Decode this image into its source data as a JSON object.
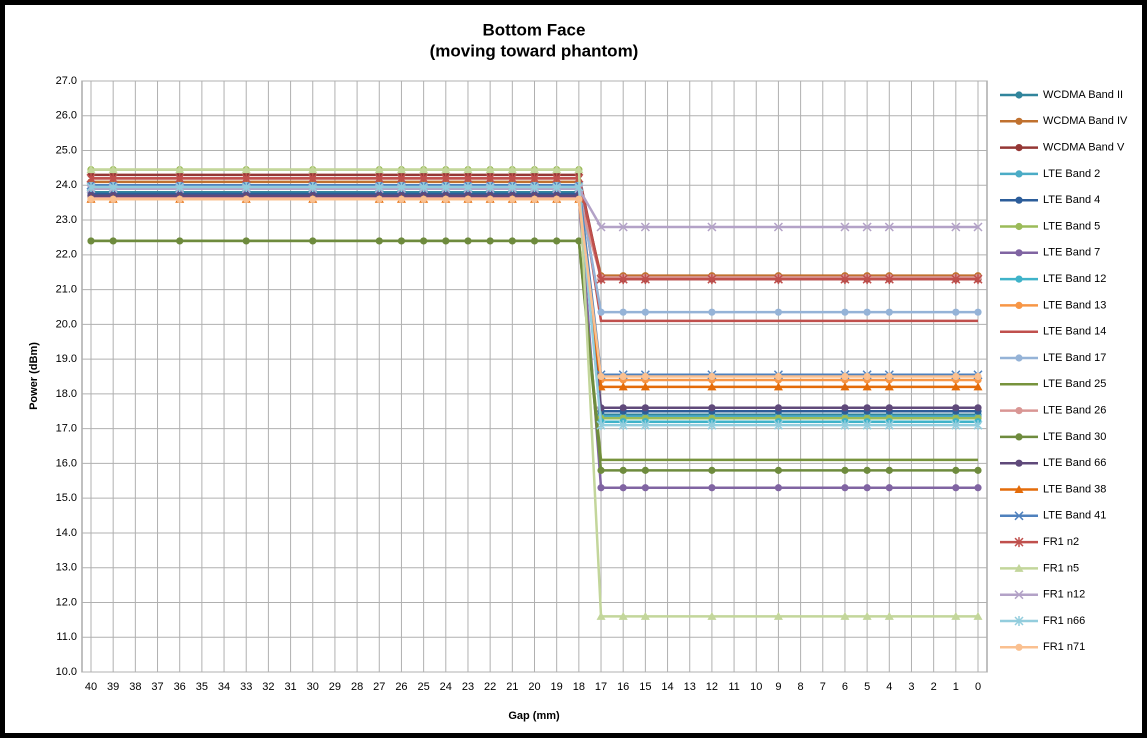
{
  "chart_data": {
    "type": "line",
    "title": "Bottom Face",
    "subtitle": "(moving toward phantom)",
    "x_label": "Gap (mm)",
    "y_label": "Power (dBm)",
    "x": [
      40,
      39,
      36,
      33,
      30,
      27,
      26,
      25,
      24,
      23,
      22,
      21,
      20,
      19,
      18,
      17,
      16,
      15,
      12,
      9,
      6,
      5,
      4,
      1,
      0
    ],
    "xlim": [
      40,
      0
    ],
    "xticks": [
      40,
      39,
      38,
      37,
      36,
      35,
      34,
      33,
      32,
      31,
      30,
      29,
      28,
      27,
      26,
      25,
      24,
      23,
      22,
      21,
      20,
      19,
      18,
      17,
      16,
      15,
      14,
      13,
      12,
      11,
      10,
      9,
      8,
      7,
      6,
      5,
      4,
      3,
      2,
      1,
      0
    ],
    "ylim": [
      10,
      27
    ],
    "yticks": [
      {
        "value": 10,
        "label": "10.0"
      },
      {
        "value": 11,
        "label": "11.0"
      },
      {
        "value": 12,
        "label": "12.0"
      },
      {
        "value": 13,
        "label": "13.0"
      },
      {
        "value": 14,
        "label": "14.0"
      },
      {
        "value": 15,
        "label": "15.0"
      },
      {
        "value": 16,
        "label": "16.0"
      },
      {
        "value": 17,
        "label": "17.0"
      },
      {
        "value": 18,
        "label": "18.0"
      },
      {
        "value": 19,
        "label": "19.0"
      },
      {
        "value": 20,
        "label": "20.0"
      },
      {
        "value": 21,
        "label": "21.0"
      },
      {
        "value": 22,
        "label": "22.0"
      },
      {
        "value": 23,
        "label": "23.0"
      },
      {
        "value": 24,
        "label": "24.0"
      },
      {
        "value": 25,
        "label": "25.0"
      },
      {
        "value": 26,
        "label": "26.0"
      },
      {
        "value": 27,
        "label": "27.0"
      }
    ],
    "grid": true,
    "legend": "right",
    "series": [
      {
        "name": "WCDMA Band II",
        "color": "#31859c",
        "marker": "circle",
        "values": [
          23.8,
          23.8,
          23.8,
          23.8,
          23.8,
          23.8,
          23.8,
          23.8,
          23.8,
          23.8,
          23.8,
          23.8,
          23.8,
          23.8,
          23.8,
          17.4,
          17.4,
          17.4,
          17.4,
          17.4,
          17.4,
          17.4,
          17.4,
          17.4,
          17.4
        ]
      },
      {
        "name": "WCDMA Band IV",
        "color": "#c0712f",
        "marker": "circle",
        "values": [
          24.1,
          24.1,
          24.1,
          24.1,
          24.1,
          24.1,
          24.1,
          24.1,
          24.1,
          24.1,
          24.1,
          24.1,
          24.1,
          24.1,
          24.1,
          21.4,
          21.4,
          21.4,
          21.4,
          21.4,
          21.4,
          21.4,
          21.4,
          21.4,
          21.4
        ]
      },
      {
        "name": "WCDMA Band V",
        "color": "#953735",
        "marker": "circle",
        "values": [
          24.3,
          24.3,
          24.3,
          24.3,
          24.3,
          24.3,
          24.3,
          24.3,
          24.3,
          24.3,
          24.3,
          24.3,
          24.3,
          24.3,
          24.3,
          21.3,
          21.3,
          21.3,
          21.3,
          21.3,
          21.3,
          21.3,
          21.3,
          21.3,
          21.3
        ]
      },
      {
        "name": "LTE Band 2",
        "color": "#4bacc6",
        "marker": "circle",
        "values": [
          23.9,
          23.9,
          23.9,
          23.9,
          23.9,
          23.9,
          23.9,
          23.9,
          23.9,
          23.9,
          23.9,
          23.9,
          23.9,
          23.9,
          23.9,
          17.35,
          17.35,
          17.35,
          17.35,
          17.35,
          17.35,
          17.35,
          17.35,
          17.35,
          17.35
        ]
      },
      {
        "name": "LTE Band 4",
        "color": "#2c5d9a",
        "marker": "circle",
        "values": [
          23.75,
          23.75,
          23.75,
          23.75,
          23.75,
          23.75,
          23.75,
          23.75,
          23.75,
          23.75,
          23.75,
          23.75,
          23.75,
          23.75,
          23.75,
          17.5,
          17.5,
          17.5,
          17.5,
          17.5,
          17.5,
          17.5,
          17.5,
          17.5,
          17.5
        ]
      },
      {
        "name": "LTE Band 5",
        "color": "#9bbb59",
        "marker": "circle",
        "values": [
          24.45,
          24.45,
          24.45,
          24.45,
          24.45,
          24.45,
          24.45,
          24.45,
          24.45,
          24.45,
          24.45,
          24.45,
          24.45,
          24.45,
          24.45,
          17.3,
          17.3,
          17.3,
          17.3,
          17.3,
          17.3,
          17.3,
          17.3,
          17.3,
          17.3
        ]
      },
      {
        "name": "LTE Band 7",
        "color": "#8064a2",
        "marker": "circle",
        "values": [
          23.7,
          23.7,
          23.7,
          23.7,
          23.7,
          23.7,
          23.7,
          23.7,
          23.7,
          23.7,
          23.7,
          23.7,
          23.7,
          23.7,
          23.7,
          15.3,
          15.3,
          15.3,
          15.3,
          15.3,
          15.3,
          15.3,
          15.3,
          15.3,
          15.3
        ]
      },
      {
        "name": "LTE Band 12",
        "color": "#3fb3c9",
        "marker": "circle",
        "values": [
          24.0,
          24.0,
          24.0,
          24.0,
          24.0,
          24.0,
          24.0,
          24.0,
          24.0,
          24.0,
          24.0,
          24.0,
          24.0,
          24.0,
          24.0,
          17.2,
          17.2,
          17.2,
          17.2,
          17.2,
          17.2,
          17.2,
          17.2,
          17.2,
          17.2
        ]
      },
      {
        "name": "LTE Band 13",
        "color": "#f79646",
        "marker": "circle",
        "values": [
          23.6,
          23.6,
          23.6,
          23.6,
          23.6,
          23.6,
          23.6,
          23.6,
          23.6,
          23.6,
          23.6,
          23.6,
          23.6,
          23.6,
          23.6,
          18.4,
          18.4,
          18.4,
          18.4,
          18.4,
          18.4,
          18.4,
          18.4,
          18.4,
          18.4
        ]
      },
      {
        "name": "LTE Band 14",
        "color": "#c0504d",
        "marker": "none",
        "values": [
          24.2,
          24.2,
          24.2,
          24.2,
          24.2,
          24.2,
          24.2,
          24.2,
          24.2,
          24.2,
          24.2,
          24.2,
          24.2,
          24.2,
          24.2,
          20.1,
          20.1,
          20.1,
          20.1,
          20.1,
          20.1,
          20.1,
          20.1,
          20.1,
          20.1
        ]
      },
      {
        "name": "LTE Band 17",
        "color": "#95b3d7",
        "marker": "circle",
        "values": [
          24.0,
          24.0,
          24.0,
          24.0,
          24.0,
          24.0,
          24.0,
          24.0,
          24.0,
          24.0,
          24.0,
          24.0,
          24.0,
          24.0,
          24.0,
          20.35,
          20.35,
          20.35,
          20.35,
          20.35,
          20.35,
          20.35,
          20.35,
          20.35,
          20.35
        ]
      },
      {
        "name": "LTE Band 25",
        "color": "#77933c",
        "marker": "none",
        "values": [
          22.4,
          22.4,
          22.4,
          22.4,
          22.4,
          22.4,
          22.4,
          22.4,
          22.4,
          22.4,
          22.4,
          22.4,
          22.4,
          22.4,
          22.4,
          16.1,
          16.1,
          16.1,
          16.1,
          16.1,
          16.1,
          16.1,
          16.1,
          16.1,
          16.1
        ]
      },
      {
        "name": "LTE Band 26",
        "color": "#d99694",
        "marker": "circle",
        "values": [
          23.65,
          23.65,
          23.65,
          23.65,
          23.65,
          23.65,
          23.65,
          23.65,
          23.65,
          23.65,
          23.65,
          23.65,
          23.65,
          23.65,
          23.65,
          21.35,
          21.35,
          21.35,
          21.35,
          21.35,
          21.35,
          21.35,
          21.35,
          21.35,
          21.35
        ]
      },
      {
        "name": "LTE Band 30",
        "color": "#6e8b3d",
        "marker": "circle",
        "values": [
          22.4,
          22.4,
          22.4,
          22.4,
          22.4,
          22.4,
          22.4,
          22.4,
          22.4,
          22.4,
          22.4,
          22.4,
          22.4,
          22.4,
          22.4,
          15.8,
          15.8,
          15.8,
          15.8,
          15.8,
          15.8,
          15.8,
          15.8,
          15.8,
          15.8
        ]
      },
      {
        "name": "LTE Band 66",
        "color": "#5f497a",
        "marker": "circle",
        "values": [
          23.7,
          23.7,
          23.7,
          23.7,
          23.7,
          23.7,
          23.7,
          23.7,
          23.7,
          23.7,
          23.7,
          23.7,
          23.7,
          23.7,
          23.7,
          17.6,
          17.6,
          17.6,
          17.6,
          17.6,
          17.6,
          17.6,
          17.6,
          17.6,
          17.6
        ]
      },
      {
        "name": "LTE Band 38",
        "color": "#e46c0a",
        "marker": "triangle",
        "values": [
          23.6,
          23.6,
          23.6,
          23.6,
          23.6,
          23.6,
          23.6,
          23.6,
          23.6,
          23.6,
          23.6,
          23.6,
          23.6,
          23.6,
          23.6,
          18.2,
          18.2,
          18.2,
          18.2,
          18.2,
          18.2,
          18.2,
          18.2,
          18.2,
          18.2
        ]
      },
      {
        "name": "LTE Band 41",
        "color": "#4f81bd",
        "marker": "x",
        "values": [
          24.0,
          24.0,
          24.0,
          24.0,
          24.0,
          24.0,
          24.0,
          24.0,
          24.0,
          24.0,
          24.0,
          24.0,
          24.0,
          24.0,
          24.0,
          18.55,
          18.55,
          18.55,
          18.55,
          18.55,
          18.55,
          18.55,
          18.55,
          18.55,
          18.55
        ]
      },
      {
        "name": "FR1 n2",
        "color": "#c0504d",
        "marker": "star",
        "values": [
          24.2,
          24.2,
          24.2,
          24.2,
          24.2,
          24.2,
          24.2,
          24.2,
          24.2,
          24.2,
          24.2,
          24.2,
          24.2,
          24.2,
          24.2,
          21.3,
          21.3,
          21.3,
          21.3,
          21.3,
          21.3,
          21.3,
          21.3,
          21.3,
          21.3
        ]
      },
      {
        "name": "FR1 n5",
        "color": "#c3d69b",
        "marker": "triangle",
        "values": [
          24.45,
          24.45,
          24.45,
          24.45,
          24.45,
          24.45,
          24.45,
          24.45,
          24.45,
          24.45,
          24.45,
          24.45,
          24.45,
          24.45,
          24.45,
          11.6,
          11.6,
          11.6,
          11.6,
          11.6,
          11.6,
          11.6,
          11.6,
          11.6,
          11.6
        ]
      },
      {
        "name": "FR1 n12",
        "color": "#b3a2c7",
        "marker": "x",
        "values": [
          23.9,
          23.9,
          23.9,
          23.9,
          23.9,
          23.9,
          23.9,
          23.9,
          23.9,
          23.9,
          23.9,
          23.9,
          23.9,
          23.9,
          23.9,
          22.8,
          22.8,
          22.8,
          22.8,
          22.8,
          22.8,
          22.8,
          22.8,
          22.8,
          22.8
        ]
      },
      {
        "name": "FR1 n66",
        "color": "#93cddd",
        "marker": "star",
        "values": [
          23.95,
          23.95,
          23.95,
          23.95,
          23.95,
          23.95,
          23.95,
          23.95,
          23.95,
          23.95,
          23.95,
          23.95,
          23.95,
          23.95,
          23.95,
          17.1,
          17.1,
          17.1,
          17.1,
          17.1,
          17.1,
          17.1,
          17.1,
          17.1,
          17.1
        ]
      },
      {
        "name": "FR1 n71",
        "color": "#fac090",
        "marker": "circle",
        "values": [
          23.6,
          23.6,
          23.6,
          23.6,
          23.6,
          23.6,
          23.6,
          23.6,
          23.6,
          23.6,
          23.6,
          23.6,
          23.6,
          23.6,
          23.6,
          18.5,
          18.5,
          18.5,
          18.5,
          18.5,
          18.5,
          18.5,
          18.5,
          18.5,
          18.5
        ]
      }
    ]
  }
}
